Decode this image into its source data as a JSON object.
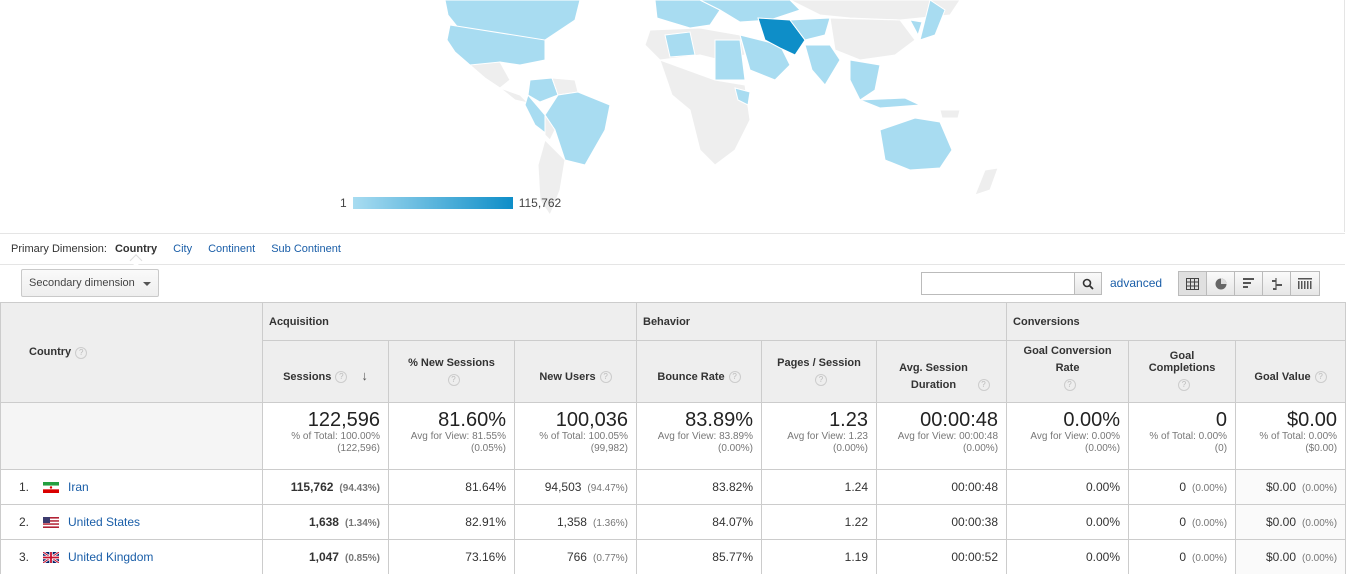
{
  "map": {
    "legend_min": "1",
    "legend_max": "115,762",
    "colors": {
      "highest": "#0e8ec8",
      "lowest": "#a8dcf1",
      "no_data": "#eeeeee"
    }
  },
  "dimensions": {
    "label": "Primary Dimension:",
    "current": "Country",
    "options": [
      "City",
      "Continent",
      "Sub Continent"
    ]
  },
  "toolbar": {
    "secondary_dimension": "Secondary dimension",
    "search_placeholder": "",
    "advanced": "advanced",
    "views": [
      "table-icon",
      "pie-icon",
      "performance-icon",
      "comparison-icon",
      "pivot-icon"
    ]
  },
  "table": {
    "country_header": "Country",
    "groups": {
      "acquisition": "Acquisition",
      "behavior": "Behavior",
      "conversions": "Conversions"
    },
    "columns": {
      "sessions": "Sessions",
      "new_sessions": "% New Sessions",
      "new_users": "New Users",
      "bounce_rate": "Bounce Rate",
      "pages_session": "Pages / Session",
      "avg_duration": "Avg. Session Duration",
      "goal_conv": "Goal Conversion Rate",
      "goal_comp": "Goal Completions",
      "goal_value": "Goal Value"
    },
    "totals": {
      "sessions": {
        "big": "122,596",
        "sub1": "% of Total: 100.00%",
        "sub2": "(122,596)"
      },
      "new_sessions": {
        "big": "81.60%",
        "sub1": "Avg for View: 81.55%",
        "sub2": "(0.05%)"
      },
      "new_users": {
        "big": "100,036",
        "sub1": "% of Total: 100.05%",
        "sub2": "(99,982)"
      },
      "bounce_rate": {
        "big": "83.89%",
        "sub1": "Avg for View: 83.89%",
        "sub2": "(0.00%)"
      },
      "pages_session": {
        "big": "1.23",
        "sub1": "Avg for View: 1.23",
        "sub2": "(0.00%)"
      },
      "avg_duration": {
        "big": "00:00:48",
        "sub1": "Avg for View: 00:00:48",
        "sub2": "(0.00%)"
      },
      "goal_conv": {
        "big": "0.00%",
        "sub1": "Avg for View: 0.00%",
        "sub2": "(0.00%)"
      },
      "goal_comp": {
        "big": "0",
        "sub1": "% of Total: 0.00%",
        "sub2": "(0)"
      },
      "goal_value": {
        "big": "$0.00",
        "sub1": "% of Total: 0.00%",
        "sub2": "($0.00)"
      }
    },
    "rows": [
      {
        "rank": "1.",
        "flag": "iran",
        "country": "Iran",
        "sessions": "115,762",
        "sessions_pct": "(94.43%)",
        "new_sessions": "81.64%",
        "new_users": "94,503",
        "new_users_pct": "(94.47%)",
        "bounce_rate": "83.82%",
        "pages_session": "1.24",
        "avg_duration": "00:00:48",
        "goal_conv": "0.00%",
        "goal_comp": "0",
        "goal_comp_pct": "(0.00%)",
        "goal_value": "$0.00",
        "goal_value_pct": "(0.00%)"
      },
      {
        "rank": "2.",
        "flag": "usa",
        "country": "United States",
        "sessions": "1,638",
        "sessions_pct": "(1.34%)",
        "new_sessions": "82.91%",
        "new_users": "1,358",
        "new_users_pct": "(1.36%)",
        "bounce_rate": "84.07%",
        "pages_session": "1.22",
        "avg_duration": "00:00:38",
        "goal_conv": "0.00%",
        "goal_comp": "0",
        "goal_comp_pct": "(0.00%)",
        "goal_value": "$0.00",
        "goal_value_pct": "(0.00%)"
      },
      {
        "rank": "3.",
        "flag": "uk",
        "country": "United Kingdom",
        "sessions": "1,047",
        "sessions_pct": "(0.85%)",
        "new_sessions": "73.16%",
        "new_users": "766",
        "new_users_pct": "(0.77%)",
        "bounce_rate": "85.77%",
        "pages_session": "1.19",
        "avg_duration": "00:00:52",
        "goal_conv": "0.00%",
        "goal_comp": "0",
        "goal_comp_pct": "(0.00%)",
        "goal_value": "$0.00",
        "goal_value_pct": "(0.00%)"
      }
    ]
  }
}
